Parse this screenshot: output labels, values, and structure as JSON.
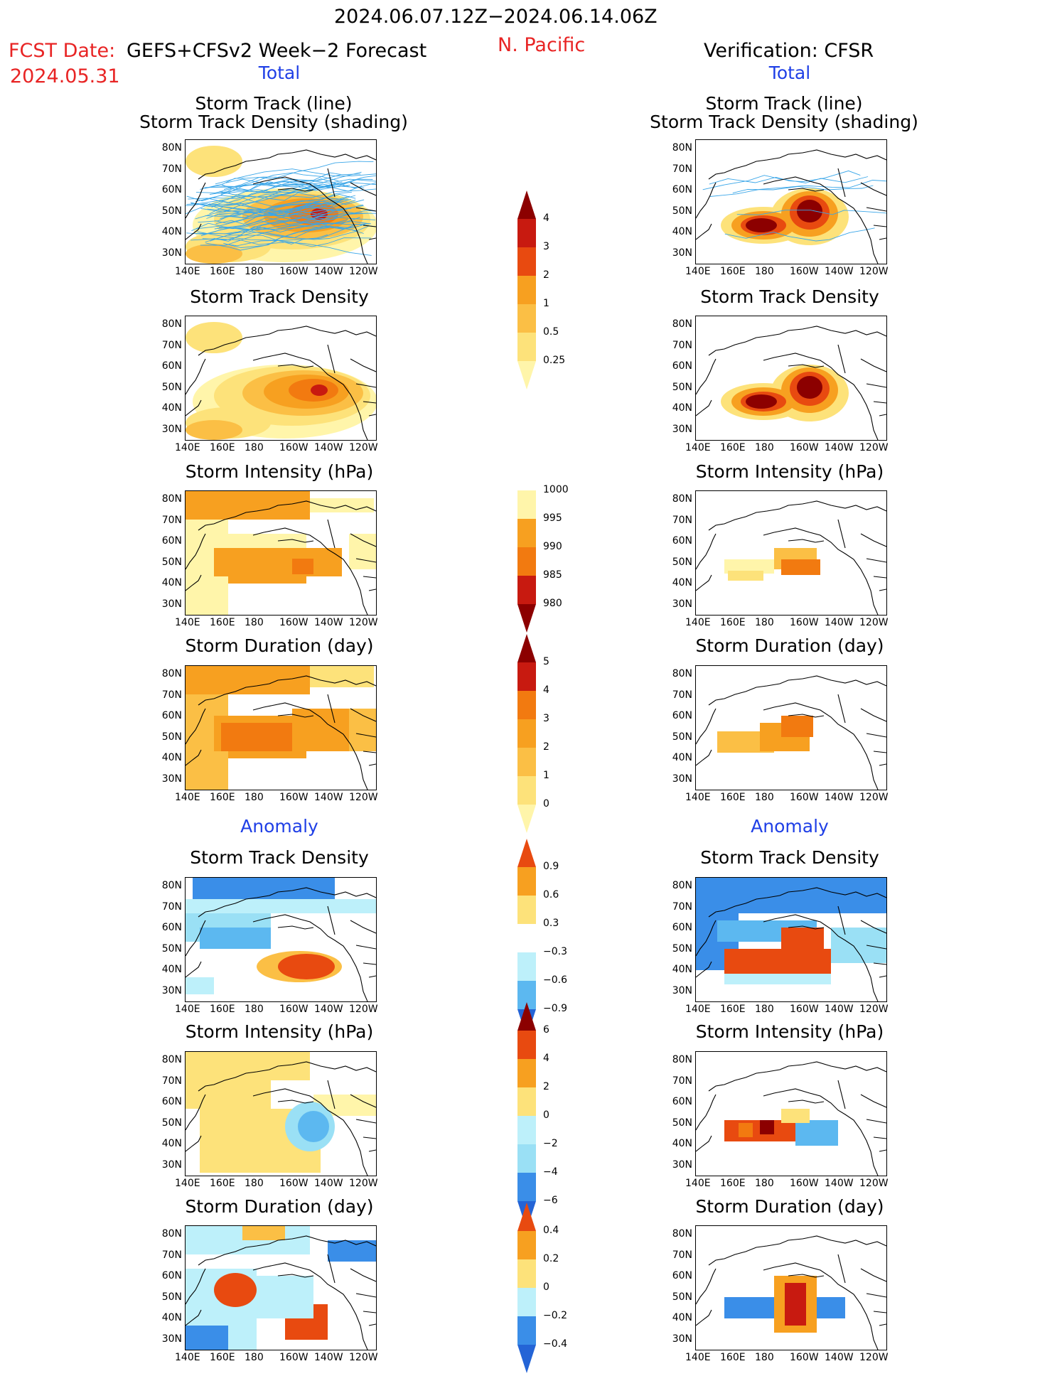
{
  "header": {
    "period": "2024.06.07.12Z−2024.06.14.06Z",
    "fcst_label": "FCST Date:",
    "fcst_model": "GEFS+CFSv2 Week−2 Forecast",
    "fcst_date": "2024.05.31",
    "region": "N. Pacific",
    "verification": "Verification: CFSR"
  },
  "sections": {
    "total_left": "Total",
    "total_right": "Total",
    "anomaly_left": "Anomaly",
    "anomaly_right": "Anomaly"
  },
  "panels": {
    "p1_line1": "Storm Track (line)",
    "p1_line2": "Storm Track Density (shading)",
    "p2": "Storm Track Density",
    "p3": "Storm Intensity (hPa)",
    "p4": "Storm Duration (day)",
    "p5": "Storm Track Density",
    "p6": "Storm Intensity (hPa)",
    "p7": "Storm Duration (day)"
  },
  "axes": {
    "lat_ticks": [
      "80N",
      "70N",
      "60N",
      "50N",
      "40N",
      "30N"
    ],
    "lon_ticks": [
      "140E",
      "160E",
      "180",
      "160W",
      "140W",
      "120W"
    ]
  },
  "colorbars": {
    "density_total": [
      "4",
      "3",
      "2",
      "1",
      "0.5",
      "0.25"
    ],
    "intensity_total": [
      "1000",
      "995",
      "990",
      "985",
      "980"
    ],
    "duration_total": [
      "5",
      "4",
      "3",
      "2",
      "1",
      "0"
    ],
    "density_anom": [
      "0.9",
      "0.6",
      "0.3",
      "−0.3",
      "−0.6",
      "−0.9"
    ],
    "intensity_anom": [
      "6",
      "4",
      "2",
      "0",
      "−2",
      "−4",
      "−6"
    ],
    "duration_anom": [
      "0.4",
      "0.2",
      "0",
      "−0.2",
      "−0.4"
    ]
  },
  "colors": {
    "warm": [
      "#fff5aa",
      "#fde27a",
      "#fbbf45",
      "#f7a020",
      "#f27a10",
      "#e84a10",
      "#c81a10",
      "#8c0000"
    ],
    "cool": [
      "#bdf0fa",
      "#9ae0f5",
      "#5cb8f0",
      "#3a8ee8",
      "#2464d6"
    ],
    "track": "#3aa6e8"
  },
  "chart_data": [
    {
      "type": "heatmap",
      "name": "forecast_storm_track_density_total",
      "note": "Forecast storm track with density shading",
      "ylim": [
        25,
        85
      ],
      "max_value_region": "central N. Pacific near 50N 150W"
    },
    {
      "type": "heatmap",
      "name": "forecast_storm_track_density",
      "ylim": [
        25,
        85
      ]
    },
    {
      "type": "heatmap",
      "name": "forecast_storm_intensity_hPa"
    },
    {
      "type": "heatmap",
      "name": "forecast_storm_duration_day"
    },
    {
      "type": "heatmap",
      "name": "forecast_density_anomaly"
    },
    {
      "type": "heatmap",
      "name": "forecast_intensity_anomaly"
    },
    {
      "type": "heatmap",
      "name": "forecast_duration_anomaly"
    },
    {
      "type": "heatmap",
      "name": "cfsr_storm_track_density_total"
    },
    {
      "type": "heatmap",
      "name": "cfsr_storm_track_density"
    },
    {
      "type": "heatmap",
      "name": "cfsr_storm_intensity_hPa"
    },
    {
      "type": "heatmap",
      "name": "cfsr_storm_duration_day"
    },
    {
      "type": "heatmap",
      "name": "cfsr_density_anomaly"
    },
    {
      "type": "heatmap",
      "name": "cfsr_intensity_anomaly"
    },
    {
      "type": "heatmap",
      "name": "cfsr_duration_anomaly"
    }
  ]
}
